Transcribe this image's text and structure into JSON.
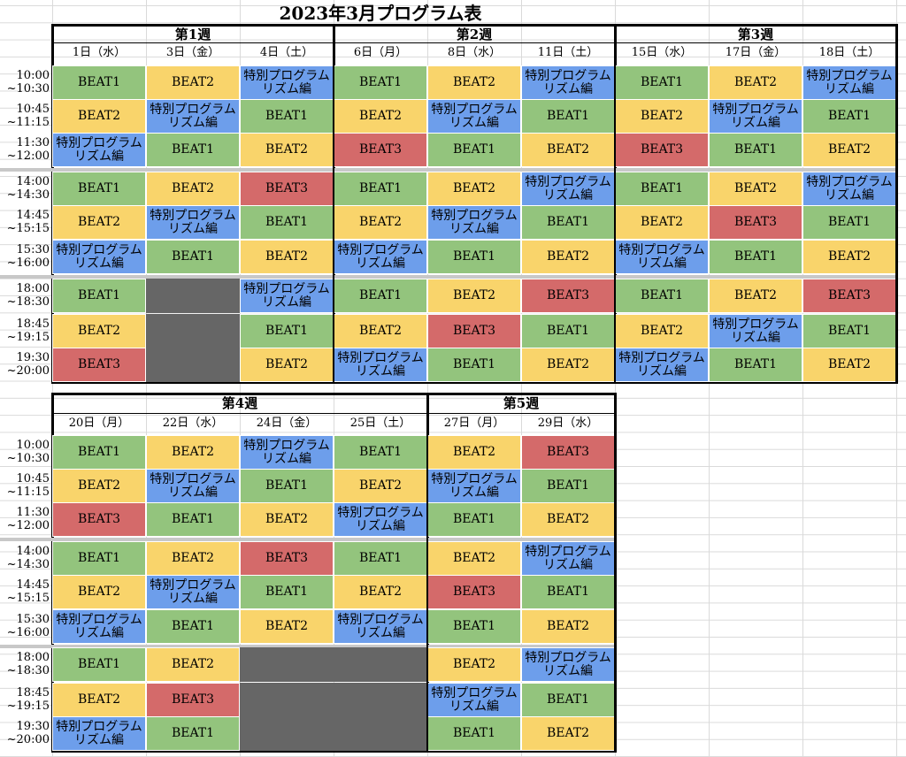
{
  "title": "2023年3月プログラム表",
  "colors": {
    "BEAT1": "#93c47d",
    "BEAT2": "#f9d46b",
    "BEAT3": "#d46a6a",
    "SPECIAL": "#6d9eeb",
    "CLOSED": "#666666"
  },
  "program_labels": {
    "BEAT1": "BEAT1",
    "BEAT2": "BEAT2",
    "BEAT3": "BEAT3",
    "SPECIAL": "特別プログラム\nリズム編"
  },
  "times": [
    "10:00\n~10:30",
    "10:45\n~11:15",
    "11:30\n~12:00",
    "14:00\n~14:30",
    "14:45\n~15:15",
    "15:30\n~16:00",
    "18:00\n~18:30",
    "18:45\n~19:15",
    "19:30\n~20:00"
  ],
  "weeks": [
    {
      "label": "第1週",
      "days": [
        {
          "date": "1日（水）",
          "slots": [
            "BEAT1",
            "BEAT2",
            "SPECIAL",
            "BEAT1",
            "BEAT2",
            "SPECIAL",
            "BEAT1",
            "BEAT2",
            "BEAT3"
          ]
        },
        {
          "date": "3日（金）",
          "slots": [
            "BEAT2",
            "SPECIAL",
            "BEAT1",
            "BEAT2",
            "SPECIAL",
            "BEAT1",
            "CLOSED",
            "CLOSED",
            "CLOSED"
          ]
        },
        {
          "date": "4日（土）",
          "slots": [
            "SPECIAL",
            "BEAT1",
            "BEAT2",
            "BEAT3",
            "BEAT1",
            "BEAT2",
            "SPECIAL",
            "BEAT1",
            "BEAT2"
          ]
        }
      ]
    },
    {
      "label": "第2週",
      "days": [
        {
          "date": "6日（月）",
          "slots": [
            "BEAT1",
            "BEAT2",
            "BEAT3",
            "BEAT1",
            "BEAT2",
            "SPECIAL",
            "BEAT1",
            "BEAT2",
            "SPECIAL"
          ]
        },
        {
          "date": "8日（水）",
          "slots": [
            "BEAT2",
            "SPECIAL",
            "BEAT1",
            "BEAT2",
            "SPECIAL",
            "BEAT1",
            "BEAT2",
            "BEAT3",
            "BEAT1"
          ]
        },
        {
          "date": "11日（土）",
          "slots": [
            "SPECIAL",
            "BEAT1",
            "BEAT2",
            "SPECIAL",
            "BEAT1",
            "BEAT2",
            "BEAT3",
            "BEAT1",
            "BEAT2"
          ]
        }
      ]
    },
    {
      "label": "第3週",
      "days": [
        {
          "date": "15日（水）",
          "slots": [
            "BEAT1",
            "BEAT2",
            "BEAT3",
            "BEAT1",
            "BEAT2",
            "SPECIAL",
            "BEAT1",
            "BEAT2",
            "SPECIAL"
          ]
        },
        {
          "date": "17日（金）",
          "slots": [
            "BEAT2",
            "SPECIAL",
            "BEAT1",
            "BEAT2",
            "BEAT3",
            "BEAT1",
            "BEAT2",
            "SPECIAL",
            "BEAT1"
          ]
        },
        {
          "date": "18日（土）",
          "slots": [
            "SPECIAL",
            "BEAT1",
            "BEAT2",
            "SPECIAL",
            "BEAT1",
            "BEAT2",
            "BEAT3",
            "BEAT1",
            "BEAT2"
          ]
        }
      ]
    },
    {
      "label": "第4週",
      "days": [
        {
          "date": "20日（月）",
          "slots": [
            "BEAT1",
            "BEAT2",
            "BEAT3",
            "BEAT1",
            "BEAT2",
            "SPECIAL",
            "BEAT1",
            "BEAT2",
            "SPECIAL"
          ]
        },
        {
          "date": "22日（水）",
          "slots": [
            "BEAT2",
            "SPECIAL",
            "BEAT1",
            "BEAT2",
            "SPECIAL",
            "BEAT1",
            "BEAT2",
            "BEAT3",
            "BEAT1"
          ]
        },
        {
          "date": "24日（金）",
          "slots": [
            "SPECIAL",
            "BEAT1",
            "BEAT2",
            "BEAT3",
            "BEAT1",
            "BEAT2",
            "CLOSED",
            "CLOSED",
            "CLOSED"
          ]
        },
        {
          "date": "25日（土）",
          "slots": [
            "BEAT1",
            "BEAT2",
            "SPECIAL",
            "BEAT1",
            "BEAT2",
            "SPECIAL",
            "CLOSED",
            "CLOSED",
            "CLOSED"
          ]
        }
      ]
    },
    {
      "label": "第5週",
      "days": [
        {
          "date": "27日（月）",
          "slots": [
            "BEAT2",
            "SPECIAL",
            "BEAT1",
            "BEAT2",
            "BEAT3",
            "BEAT1",
            "BEAT2",
            "SPECIAL",
            "BEAT1"
          ]
        },
        {
          "date": "29日（水）",
          "slots": [
            "BEAT3",
            "BEAT1",
            "BEAT2",
            "SPECIAL",
            "BEAT1",
            "BEAT2",
            "SPECIAL",
            "BEAT1",
            "BEAT2"
          ]
        }
      ]
    }
  ]
}
